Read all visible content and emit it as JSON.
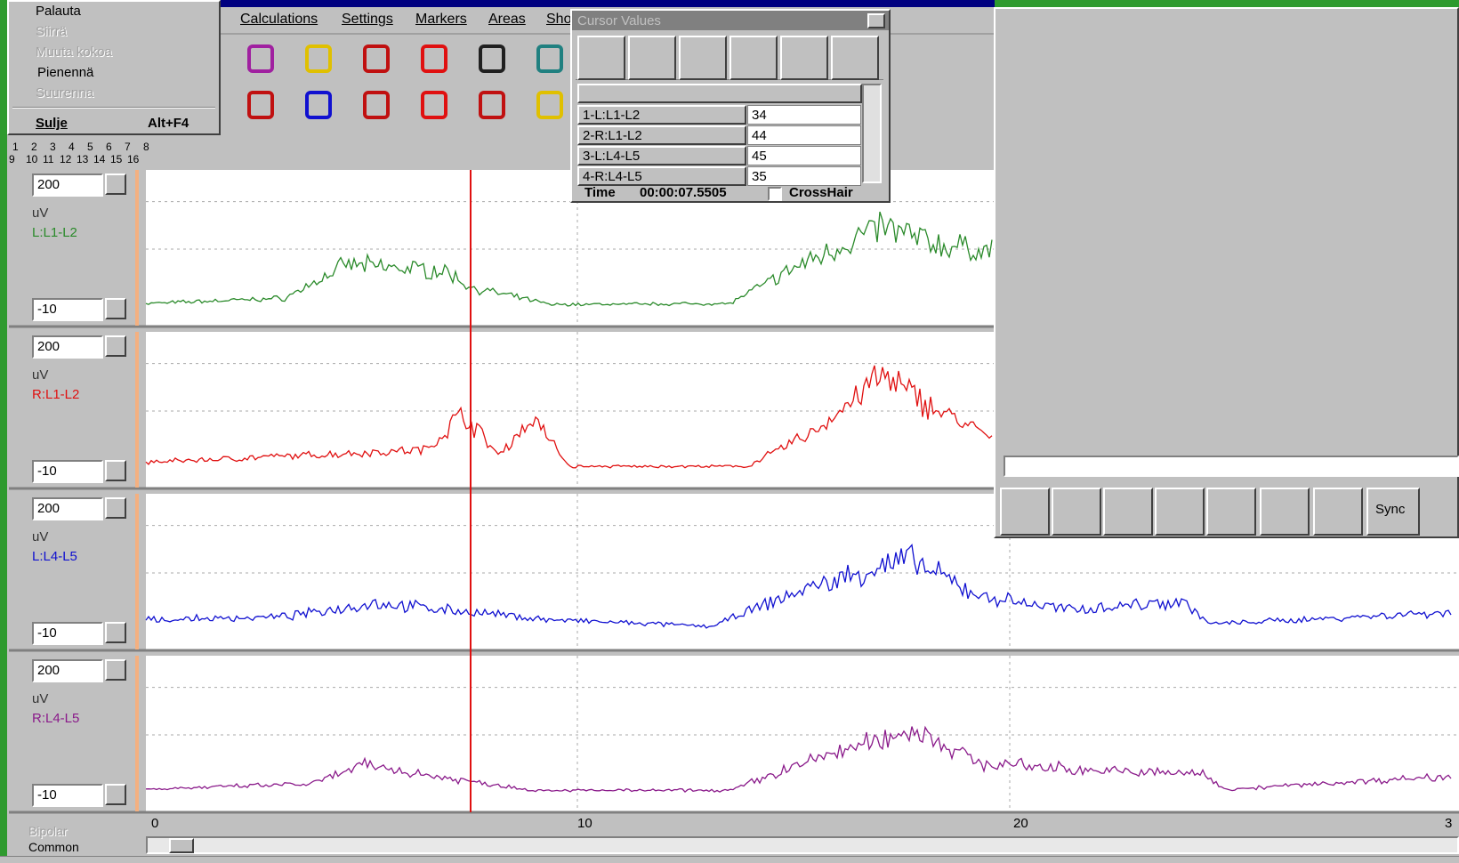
{
  "system_menu": {
    "items": [
      "Palauta",
      "Siirrä",
      "Muuta kokoa",
      "Pienennä",
      "Suurenna",
      "Sulje"
    ],
    "close_shortcut": "Alt+F4"
  },
  "menu_bar": [
    "Calculations",
    "Settings",
    "Markers",
    "Areas",
    "Sho"
  ],
  "channel_selector": {
    "row1": [
      1,
      2,
      3,
      4,
      5,
      6,
      7,
      8
    ],
    "row2": [
      9,
      10,
      11,
      12,
      13,
      14,
      15,
      16
    ]
  },
  "channels": [
    {
      "max": 200,
      "unit": "uV",
      "name": "L:L1-L2",
      "min": -10
    },
    {
      "max": 200,
      "unit": "uV",
      "name": "R:L1-L2",
      "min": -10
    },
    {
      "max": 200,
      "unit": "uV",
      "name": "L:L4-L5",
      "min": -10
    },
    {
      "max": 200,
      "unit": "uV",
      "name": "R:L4-L5",
      "min": -10
    }
  ],
  "cursor_values": {
    "title": "Cursor Values",
    "rows": [
      {
        "channel": "1-L:L1-L2",
        "value": 34
      },
      {
        "channel": "2-R:L1-L2",
        "value": 44
      },
      {
        "channel": "3-L:L4-L5",
        "value": 45
      },
      {
        "channel": "4-R:L4-L5",
        "value": 35
      }
    ],
    "time_label": "Time",
    "time": "00:00:07.5505",
    "crosshair": "CrossHair"
  },
  "time_axis": [
    "0",
    "10",
    "20",
    "3"
  ],
  "montage": [
    "Bipolar",
    "Common"
  ],
  "video_controls": {
    "sync": "Sync"
  }
}
